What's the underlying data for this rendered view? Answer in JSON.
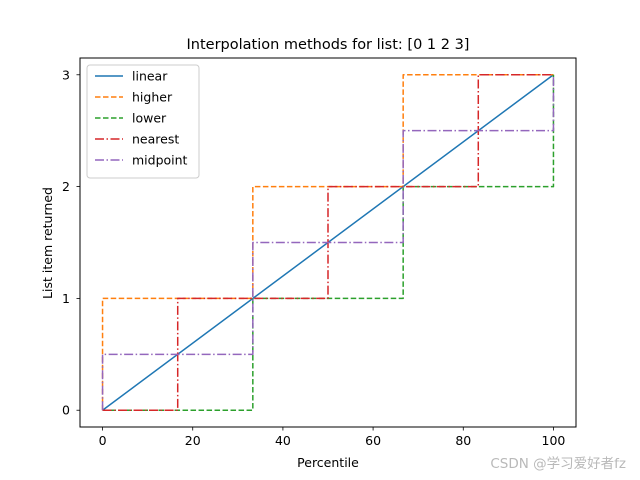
{
  "chart_data": {
    "type": "line",
    "title": "Interpolation methods for list: [0 1 2 3]",
    "xlabel": "Percentile",
    "ylabel": "List item returned",
    "xlim": [
      -5,
      105
    ],
    "ylim": [
      -0.15,
      3.15
    ],
    "xticks": [
      0,
      20,
      40,
      60,
      80,
      100
    ],
    "yticks": [
      0,
      1,
      2,
      3
    ],
    "grid": false,
    "legend_position": "top-left",
    "series": [
      {
        "name": "linear",
        "color": "#1f77b4",
        "dash": "solid",
        "x": [
          0,
          100
        ],
        "y": [
          0,
          3
        ]
      },
      {
        "name": "higher",
        "color": "#ff7f0e",
        "dash": "dashed",
        "x": [
          0,
          0,
          33.33,
          33.33,
          66.67,
          66.67,
          100
        ],
        "y": [
          0,
          1,
          1,
          2,
          2,
          3,
          3
        ]
      },
      {
        "name": "lower",
        "color": "#2ca02c",
        "dash": "dashed",
        "x": [
          0,
          33.33,
          33.33,
          66.67,
          66.67,
          100,
          100
        ],
        "y": [
          0,
          0,
          1,
          1,
          2,
          2,
          3
        ]
      },
      {
        "name": "nearest",
        "color": "#d62728",
        "dash": "dashdot",
        "x": [
          0,
          16.67,
          16.67,
          50,
          50,
          83.33,
          83.33,
          100
        ],
        "y": [
          0,
          0,
          1,
          1,
          2,
          2,
          3,
          3
        ]
      },
      {
        "name": "midpoint",
        "color": "#9467bd",
        "dash": "dashdot",
        "x": [
          0,
          0,
          33.33,
          33.33,
          66.67,
          66.67,
          100,
          100
        ],
        "y": [
          0,
          0.5,
          0.5,
          1.5,
          1.5,
          2.5,
          2.5,
          3
        ]
      }
    ]
  },
  "watermark": "CSDN @学习爱好者fz"
}
